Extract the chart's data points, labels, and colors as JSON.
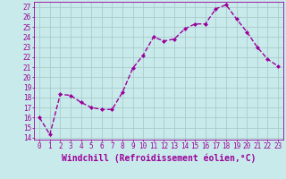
{
  "x": [
    0,
    1,
    2,
    3,
    4,
    5,
    6,
    7,
    8,
    9,
    10,
    11,
    12,
    13,
    14,
    15,
    16,
    17,
    18,
    19,
    20,
    21,
    22,
    23
  ],
  "y": [
    16.0,
    14.3,
    18.3,
    18.2,
    17.5,
    17.0,
    16.8,
    16.8,
    18.5,
    20.9,
    22.2,
    24.0,
    23.6,
    23.8,
    24.8,
    25.3,
    25.3,
    26.8,
    27.2,
    25.8,
    24.5,
    23.0,
    21.8,
    21.1
  ],
  "line_color": "#9b009b",
  "marker": "D",
  "markersize": 2.0,
  "markeredgewidth": 0.5,
  "background_color": "#c8eaea",
  "grid_color": "#aacccc",
  "xlabel": "Windchill (Refroidissement éolien,°C)",
  "ylabel": "",
  "ylim": [
    13.8,
    27.5
  ],
  "xlim": [
    -0.5,
    23.5
  ],
  "yticks": [
    14,
    15,
    16,
    17,
    18,
    19,
    20,
    21,
    22,
    23,
    24,
    25,
    26,
    27
  ],
  "xticks": [
    0,
    1,
    2,
    3,
    4,
    5,
    6,
    7,
    8,
    9,
    10,
    11,
    12,
    13,
    14,
    15,
    16,
    17,
    18,
    19,
    20,
    21,
    22,
    23
  ],
  "tick_color": "#9b009b",
  "tick_fontsize": 5.5,
  "xlabel_fontsize": 7.0,
  "linewidth": 1.0
}
